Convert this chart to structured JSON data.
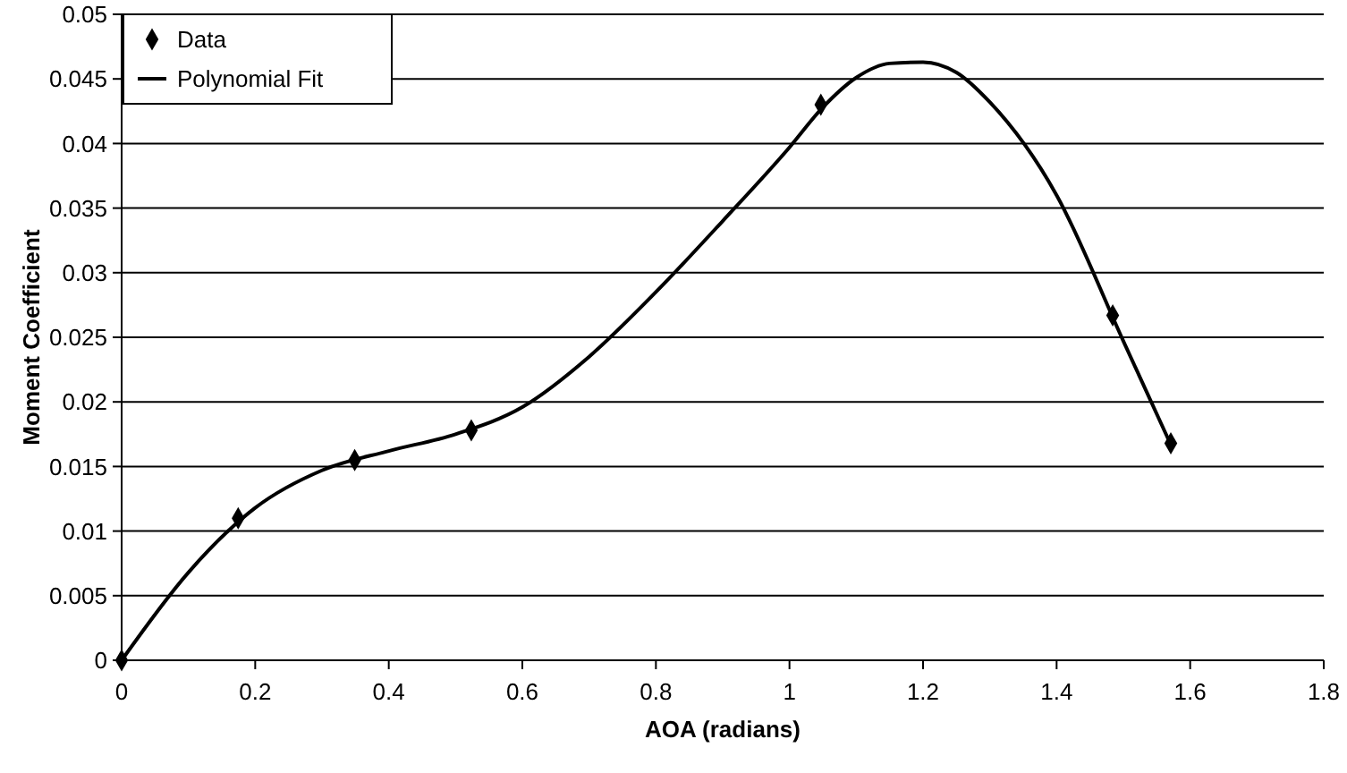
{
  "chart_data": {
    "type": "scatter",
    "xlabel": "AOA (radians)",
    "ylabel": "Moment Coefficient",
    "xlim": [
      0,
      1.8
    ],
    "xticks": [
      0,
      0.2,
      0.4,
      0.6,
      0.8,
      1,
      1.2,
      1.4,
      1.6,
      1.8
    ],
    "ylim": [
      0,
      0.05
    ],
    "yticks": [
      0,
      0.005,
      0.01,
      0.015,
      0.02,
      0.025,
      0.03,
      0.035,
      0.04,
      0.045,
      0.05
    ],
    "grid": "y",
    "legend": "top left",
    "series": [
      {
        "name": "Data",
        "marker": "diamond",
        "color": "#000000",
        "x": [
          0,
          0.1745,
          0.349,
          0.5236,
          1.047,
          1.484,
          1.571
        ],
        "values": [
          0,
          0.011,
          0.0155,
          0.0178,
          0.043,
          0.0267,
          0.0168
        ]
      },
      {
        "name": "Polynomial Fit",
        "type": "line",
        "marker": "none",
        "line_style": "solid",
        "color": "#000000",
        "x": [
          0,
          0.1,
          0.2,
          0.3,
          0.4,
          0.5,
          0.6,
          0.7,
          0.8,
          0.9,
          1.0,
          1.05,
          1.1,
          1.15,
          1.2,
          1.25,
          1.3,
          1.4,
          1.5,
          1.57
        ],
        "values": [
          0,
          0.0068,
          0.0118,
          0.0147,
          0.0162,
          0.0175,
          0.0196,
          0.0235,
          0.0285,
          0.034,
          0.0397,
          0.0428,
          0.0451,
          0.0462,
          0.0463,
          0.0455,
          0.0432,
          0.036,
          0.0247,
          0.0168
        ]
      }
    ]
  }
}
